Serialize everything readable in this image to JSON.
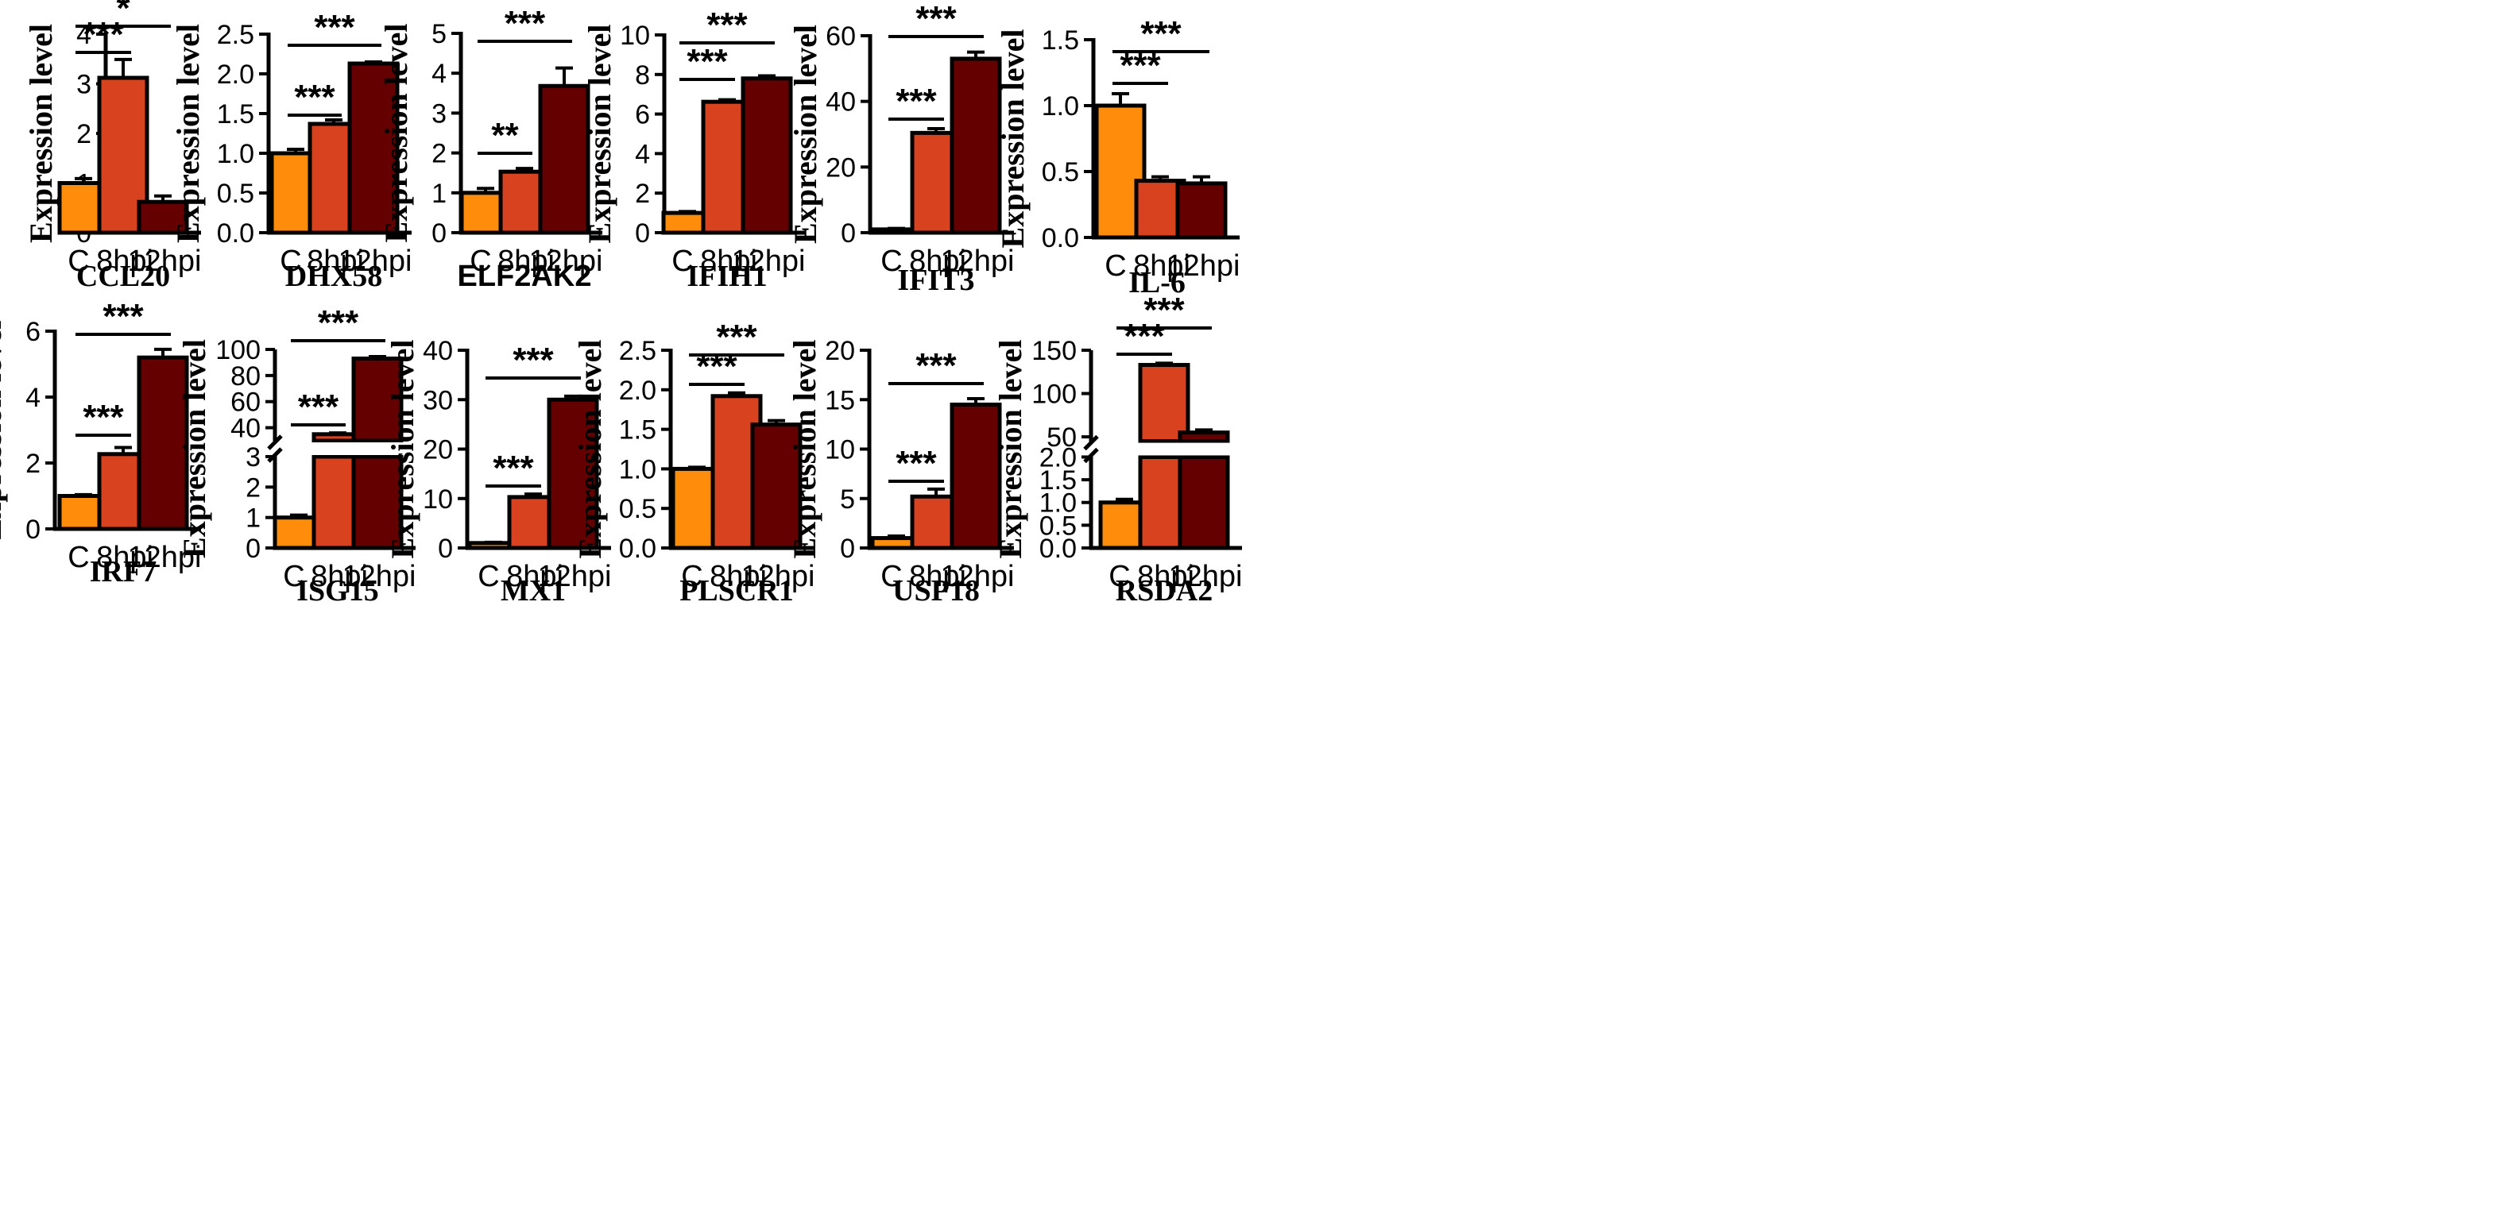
{
  "colors": {
    "C": "#FF8C0A",
    "8hpi": "#D9421E",
    "12hpi": "#650000"
  },
  "y_label": "Expression level",
  "chart_data": [
    {
      "type": "bar",
      "title": "CCL20",
      "ylabel": "Expression level",
      "categories": [
        "C",
        "8hpi",
        "12hpi"
      ],
      "values": [
        1.0,
        3.12,
        0.62
      ],
      "errors": [
        0.09,
        0.37,
        0.12
      ],
      "ylim": [
        0,
        4
      ],
      "yticks": [
        "0",
        "1",
        "2",
        "3",
        "4"
      ],
      "significance": [
        {
          "from": "C",
          "to": "8hpi",
          "label": "***"
        },
        {
          "from": "C",
          "to": "12hpi",
          "label": "*"
        }
      ]
    },
    {
      "type": "bar",
      "title": "DHX58",
      "ylabel": "Expression level",
      "categories": [
        "C",
        "8hpi",
        "12hpi"
      ],
      "values": [
        1.0,
        1.37,
        2.13
      ],
      "errors": [
        0.05,
        0.05,
        0.02
      ],
      "ylim": [
        0,
        2.5
      ],
      "yticks": [
        "0.0",
        "0.5",
        "1.0",
        "1.5",
        "2.0",
        "2.5"
      ],
      "significance": [
        {
          "from": "C",
          "to": "8hpi",
          "label": "***"
        },
        {
          "from": "C",
          "to": "12hpi",
          "label": "***"
        }
      ]
    },
    {
      "type": "bar",
      "title": "ELF2AK2",
      "ylabel": "Expression level",
      "categories": [
        "C",
        "8hpi",
        "12hpi"
      ],
      "values": [
        1.0,
        1.53,
        3.68
      ],
      "errors": [
        0.11,
        0.08,
        0.45
      ],
      "ylim": [
        0,
        5
      ],
      "yticks": [
        "0",
        "1",
        "2",
        "3",
        "4",
        "5"
      ],
      "significance": [
        {
          "from": "C",
          "to": "8hpi",
          "label": "**"
        },
        {
          "from": "C",
          "to": "12hpi",
          "label": "***"
        }
      ]
    },
    {
      "type": "bar",
      "title": "IFIH1",
      "ylabel": "Expression level",
      "categories": [
        "C",
        "8hpi",
        "12hpi"
      ],
      "values": [
        1.0,
        6.62,
        7.8
      ],
      "errors": [
        0.07,
        0.1,
        0.13
      ],
      "ylim": [
        0,
        10
      ],
      "yticks": [
        "0",
        "2",
        "4",
        "6",
        "8",
        "10"
      ],
      "significance": [
        {
          "from": "C",
          "to": "8hpi",
          "label": "***"
        },
        {
          "from": "C",
          "to": "12hpi",
          "label": "***"
        }
      ]
    },
    {
      "type": "bar",
      "title": "IFIT3",
      "ylabel": "Expression level",
      "categories": [
        "C",
        "8hpi",
        "12hpi"
      ],
      "values": [
        1.0,
        30.4,
        53.0
      ],
      "errors": [
        0.3,
        1.3,
        2.0
      ],
      "ylim": [
        0,
        60
      ],
      "yticks": [
        "0",
        "20",
        "40",
        "60"
      ],
      "significance": [
        {
          "from": "C",
          "to": "8hpi",
          "label": "***"
        },
        {
          "from": "C",
          "to": "12hpi",
          "label": "***"
        }
      ]
    },
    {
      "type": "bar",
      "title": "IL-6",
      "ylabel": "Expression level",
      "categories": [
        "C",
        "8hpi",
        "12hpi"
      ],
      "values": [
        1.0,
        0.43,
        0.41
      ],
      "errors": [
        0.09,
        0.03,
        0.05
      ],
      "ylim": [
        0,
        1.5
      ],
      "yticks": [
        "0.0",
        "0.5",
        "1.0",
        "1.5"
      ],
      "significance": [
        {
          "from": "C",
          "to": "8hpi",
          "label": "***"
        },
        {
          "from": "C",
          "to": "12hpi",
          "label": "***"
        }
      ]
    },
    {
      "type": "bar",
      "title": "IRF7",
      "ylabel": "Expression level",
      "categories": [
        "C",
        "8hpi",
        "12hpi"
      ],
      "values": [
        1.0,
        2.27,
        5.2
      ],
      "errors": [
        0.04,
        0.2,
        0.25
      ],
      "ylim": [
        0,
        6
      ],
      "yticks": [
        "0",
        "2",
        "4",
        "6"
      ],
      "significance": [
        {
          "from": "C",
          "to": "8hpi",
          "label": "***"
        },
        {
          "from": "C",
          "to": "12hpi",
          "label": "***"
        }
      ]
    },
    {
      "type": "bar",
      "title": "ISG15",
      "ylabel": "Expression level",
      "categories": [
        "C",
        "8hpi",
        "12hpi"
      ],
      "values": [
        1.0,
        35.0,
        93.0
      ],
      "errors": [
        0.08,
        1.0,
        1.5
      ],
      "ylim": [
        0,
        100
      ],
      "broken_axis": {
        "lower": [
          0,
          3
        ],
        "upper": [
          30,
          100
        ]
      },
      "yticks": [
        "0",
        "1",
        "2",
        "3",
        "40",
        "60",
        "80",
        "100"
      ],
      "significance": [
        {
          "from": "C",
          "to": "8hpi",
          "label": "***"
        },
        {
          "from": "C",
          "to": "12hpi",
          "label": "***"
        }
      ]
    },
    {
      "type": "bar",
      "title": "MX1",
      "ylabel": "Expression level",
      "categories": [
        "C",
        "8hpi",
        "12hpi"
      ],
      "values": [
        1.0,
        10.3,
        30.0
      ],
      "errors": [
        0.15,
        0.6,
        0.7
      ],
      "ylim": [
        0,
        40
      ],
      "yticks": [
        "0",
        "10",
        "20",
        "30",
        "40"
      ],
      "significance": [
        {
          "from": "C",
          "to": "8hpi",
          "label": "***"
        },
        {
          "from": "C",
          "to": "12hpi",
          "label": "***"
        }
      ]
    },
    {
      "type": "bar",
      "title": "PLSCR1",
      "ylabel": "Expression level",
      "categories": [
        "C",
        "8hpi",
        "12hpi"
      ],
      "values": [
        1.0,
        1.92,
        1.56
      ],
      "errors": [
        0.02,
        0.04,
        0.05
      ],
      "ylim": [
        0,
        2.5
      ],
      "yticks": [
        "0.0",
        "0.5",
        "1.0",
        "1.5",
        "2.0",
        "2.5"
      ],
      "significance": [
        {
          "from": "C",
          "to": "8hpi",
          "label": "***"
        },
        {
          "from": "C",
          "to": "12hpi",
          "label": "***"
        }
      ]
    },
    {
      "type": "bar",
      "title": "USP18",
      "ylabel": "Expression level",
      "categories": [
        "C",
        "8hpi",
        "12hpi"
      ],
      "values": [
        1.0,
        5.2,
        14.5
      ],
      "errors": [
        0.2,
        0.75,
        0.6
      ],
      "ylim": [
        0,
        20
      ],
      "yticks": [
        "0",
        "5",
        "10",
        "15",
        "20"
      ],
      "significance": [
        {
          "from": "C",
          "to": "8hpi",
          "label": "***"
        },
        {
          "from": "C",
          "to": "12hpi",
          "label": "***"
        }
      ]
    },
    {
      "type": "bar",
      "title": "RSDA2",
      "ylabel": "Expression level",
      "categories": [
        "C",
        "8hpi",
        "12hpi"
      ],
      "values": [
        1.0,
        133.0,
        55.0
      ],
      "errors": [
        0.07,
        2.0,
        3.0
      ],
      "ylim": [
        0,
        150
      ],
      "broken_axis": {
        "lower": [
          0,
          2
        ],
        "upper": [
          45,
          150
        ]
      },
      "yticks": [
        "0.0",
        "0.5",
        "1.0",
        "1.5",
        "2.0",
        "50",
        "100",
        "150"
      ],
      "significance": [
        {
          "from": "C",
          "to": "8hpi",
          "label": "***"
        },
        {
          "from": "C",
          "to": "12hpi",
          "label": "***"
        }
      ]
    }
  ]
}
